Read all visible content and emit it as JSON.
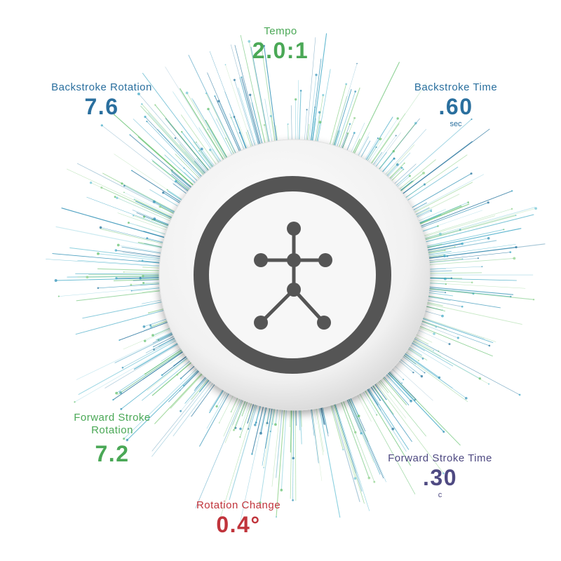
{
  "metrics": {
    "tempo": {
      "label": "Tempo",
      "value": "2.0:1"
    },
    "backstroke_rotation": {
      "label": "Backstroke Rotation",
      "value": "7.6"
    },
    "backstroke_time": {
      "label": "Backstroke Time",
      "value": ".60",
      "unit": "sec"
    },
    "forward_stroke_rotation": {
      "label_line1": "Forward Stroke",
      "label_line2": "Rotation",
      "value": "7.2"
    },
    "forward_stroke_time": {
      "label": "Forward Stroke Time",
      "value": ".30",
      "unit": "c"
    },
    "rotation_change": {
      "label": "Rotation Change",
      "value": "0.4°"
    }
  },
  "colors": {
    "green": "#4aa856",
    "blue": "#2a6f9e",
    "purple": "#4f4a82",
    "red": "#c0343b",
    "device_ring": "#555555",
    "device_body": "#f4f4f4"
  },
  "icons": {
    "device_logo": "stick-figure-icon"
  }
}
